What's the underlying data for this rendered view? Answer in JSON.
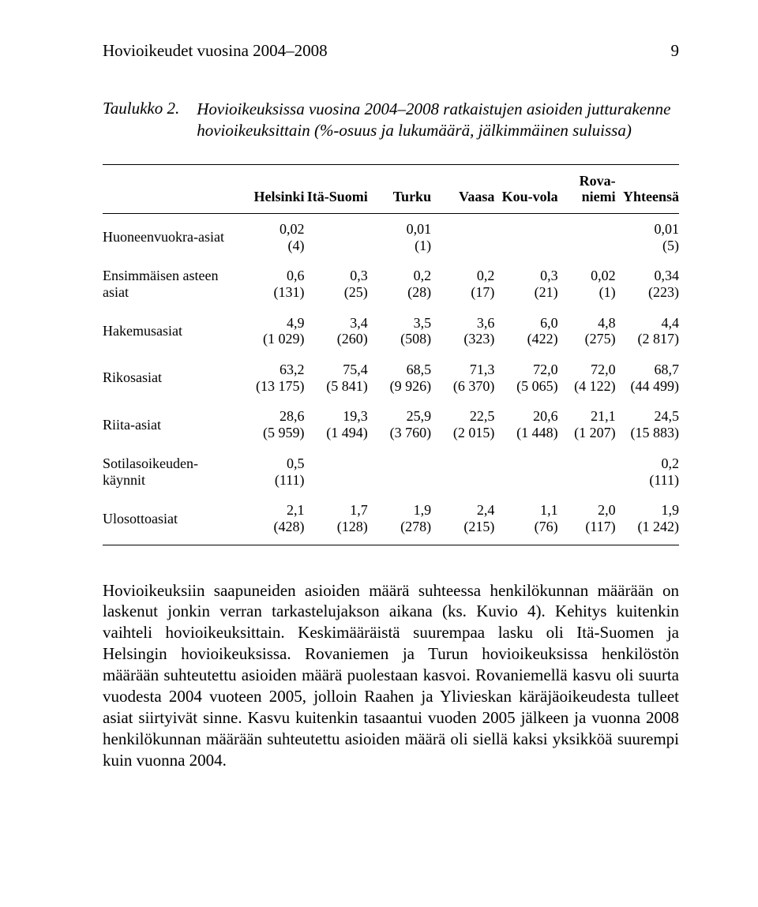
{
  "page": {
    "running_head": "Hovioikeudet vuosina 2004–2008",
    "page_number": "9"
  },
  "caption": {
    "label": "Taulukko 2.",
    "text": "Hovioikeuksissa vuosina 2004–2008 ratkaistujen asioiden jutturakenne hovioikeuksittain (%-osuus ja lukumäärä, jälkimmäinen suluissa)"
  },
  "table": {
    "columns": [
      {
        "key": "label",
        "header": "",
        "width": "22%",
        "align": "left"
      },
      {
        "key": "helsinki",
        "header": "Helsinki",
        "width": "13%",
        "align": "right"
      },
      {
        "key": "ita",
        "header": "Itä-\nSuomi",
        "width": "11%",
        "align": "right"
      },
      {
        "key": "turku",
        "header": "Turku",
        "width": "11%",
        "align": "right"
      },
      {
        "key": "vaasa",
        "header": "Vaasa",
        "width": "11%",
        "align": "right"
      },
      {
        "key": "kouvola",
        "header": "Kou-\nvola",
        "width": "11%",
        "align": "right"
      },
      {
        "key": "rova",
        "header": "Rova-\nniemi",
        "width": "10%",
        "align": "right"
      },
      {
        "key": "yht",
        "header": "Yhteensä",
        "width": "13%",
        "align": "right"
      }
    ],
    "rows": [
      {
        "label": "Huoneenvuokra-asiat",
        "helsinki": {
          "pct": "0,02",
          "n": "(4)"
        },
        "ita": null,
        "turku": {
          "pct": "0,01",
          "n": "(1)"
        },
        "vaasa": null,
        "kouvola": null,
        "rova": null,
        "yht": {
          "pct": "0,01",
          "n": "(5)"
        }
      },
      {
        "label": "Ensimmäisen asteen asiat",
        "helsinki": {
          "pct": "0,6",
          "n": "(131)"
        },
        "ita": {
          "pct": "0,3",
          "n": "(25)"
        },
        "turku": {
          "pct": "0,2",
          "n": "(28)"
        },
        "vaasa": {
          "pct": "0,2",
          "n": "(17)"
        },
        "kouvola": {
          "pct": "0,3",
          "n": "(21)"
        },
        "rova": {
          "pct": "0,02",
          "n": "(1)"
        },
        "yht": {
          "pct": "0,34",
          "n": "(223)"
        }
      },
      {
        "label": "Hakemusasiat",
        "helsinki": {
          "pct": "4,9",
          "n": "(1 029)"
        },
        "ita": {
          "pct": "3,4",
          "n": "(260)"
        },
        "turku": {
          "pct": "3,5",
          "n": "(508)"
        },
        "vaasa": {
          "pct": "3,6",
          "n": "(323)"
        },
        "kouvola": {
          "pct": "6,0",
          "n": "(422)"
        },
        "rova": {
          "pct": "4,8",
          "n": "(275)"
        },
        "yht": {
          "pct": "4,4",
          "n": "(2 817)"
        }
      },
      {
        "label": "Rikosasiat",
        "helsinki": {
          "pct": "63,2",
          "n": "(13 175)"
        },
        "ita": {
          "pct": "75,4",
          "n": "(5 841)"
        },
        "turku": {
          "pct": "68,5",
          "n": "(9 926)"
        },
        "vaasa": {
          "pct": "71,3",
          "n": "(6 370)"
        },
        "kouvola": {
          "pct": "72,0",
          "n": "(5 065)"
        },
        "rova": {
          "pct": "72,0",
          "n": "(4 122)"
        },
        "yht": {
          "pct": "68,7",
          "n": "(44 499)"
        }
      },
      {
        "label": "Riita-asiat",
        "helsinki": {
          "pct": "28,6",
          "n": "(5 959)"
        },
        "ita": {
          "pct": "19,3",
          "n": "(1 494)"
        },
        "turku": {
          "pct": "25,9",
          "n": "(3 760)"
        },
        "vaasa": {
          "pct": "22,5",
          "n": "(2 015)"
        },
        "kouvola": {
          "pct": "20,6",
          "n": "(1 448)"
        },
        "rova": {
          "pct": "21,1",
          "n": "(1 207)"
        },
        "yht": {
          "pct": "24,5",
          "n": "(15 883)"
        }
      },
      {
        "label": "Sotilasoikeuden-\nkäynnit",
        "helsinki": {
          "pct": "0,5",
          "n": "(111)"
        },
        "ita": null,
        "turku": null,
        "vaasa": null,
        "kouvola": null,
        "rova": null,
        "yht": {
          "pct": "0,2",
          "n": "(111)"
        }
      },
      {
        "label": "Ulosottoasiat",
        "helsinki": {
          "pct": "2,1",
          "n": "(428)"
        },
        "ita": {
          "pct": "1,7",
          "n": "(128)"
        },
        "turku": {
          "pct": "1,9",
          "n": "(278)"
        },
        "vaasa": {
          "pct": "2,4",
          "n": "(215)"
        },
        "kouvola": {
          "pct": "1,1",
          "n": "(76)"
        },
        "rova": {
          "pct": "2,0",
          "n": "(117)"
        },
        "yht": {
          "pct": "1,9",
          "n": "(1 242)"
        }
      }
    ]
  },
  "body_paragraph": "Hovioikeuksiin saapuneiden asioiden määrä suhteessa henkilökunnan määrään on laskenut jonkin verran tarkastelujakson aikana (ks. Kuvio 4). Kehitys kuitenkin vaihteli hovioikeuksittain. Keskimääräistä suurempaa lasku oli Itä-Suomen ja Helsingin hovioikeuksissa. Rovaniemen ja Turun hovioikeuksissa henkilöstön määrään suhteutettu asioiden määrä puolestaan kasvoi. Rovaniemellä kasvu oli suurta vuodesta 2004 vuoteen 2005, jolloin Raahen ja Ylivieskan käräjäoikeudesta tulleet asiat siirtyivät sinne. Kasvu kuitenkin tasaantui vuoden 2005 jälkeen ja vuonna 2008 henkilökunnan määrään suhteutettu asioiden määrä oli siellä kaksi yksikköä suurempi kuin vuonna 2004."
}
